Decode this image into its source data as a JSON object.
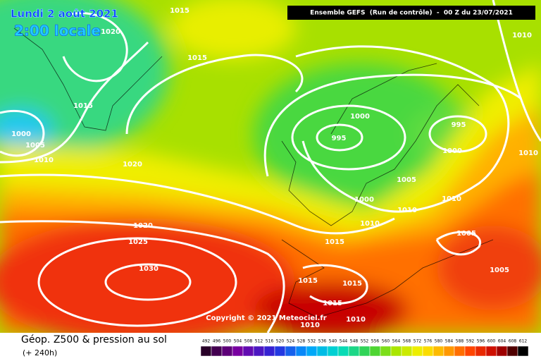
{
  "header": {
    "date": "Lundi 2 août 2021",
    "time": "2:00 locale",
    "model": "Ensemble GEFS  (Run de contrôle)  -  00 Z du 23/07/2021"
  },
  "isobar_labels": [
    "1015",
    "1020",
    "1015",
    "1015",
    "1000",
    "1005",
    "1010",
    "1020",
    "1020",
    "1025",
    "1030",
    "995",
    "1000",
    "995",
    "1000",
    "1005",
    "1000",
    "1010",
    "1010",
    "1010",
    "1005",
    "1005",
    "1015",
    "1015",
    "1015",
    "1015",
    "1010",
    "1010",
    "1010",
    "1010"
  ],
  "copyright": "Copyright © 2021 Meteociel.fr",
  "footer": {
    "title": "Géop. Z500 & pression au sol",
    "lead": "(+ 240h)"
  },
  "colorbar": [
    492,
    496,
    500,
    504,
    508,
    512,
    516,
    520,
    524,
    528,
    532,
    536,
    540,
    544,
    548,
    552,
    556,
    560,
    564,
    568,
    572,
    576,
    580,
    584,
    588,
    592,
    596,
    600,
    604,
    608,
    612
  ]
}
